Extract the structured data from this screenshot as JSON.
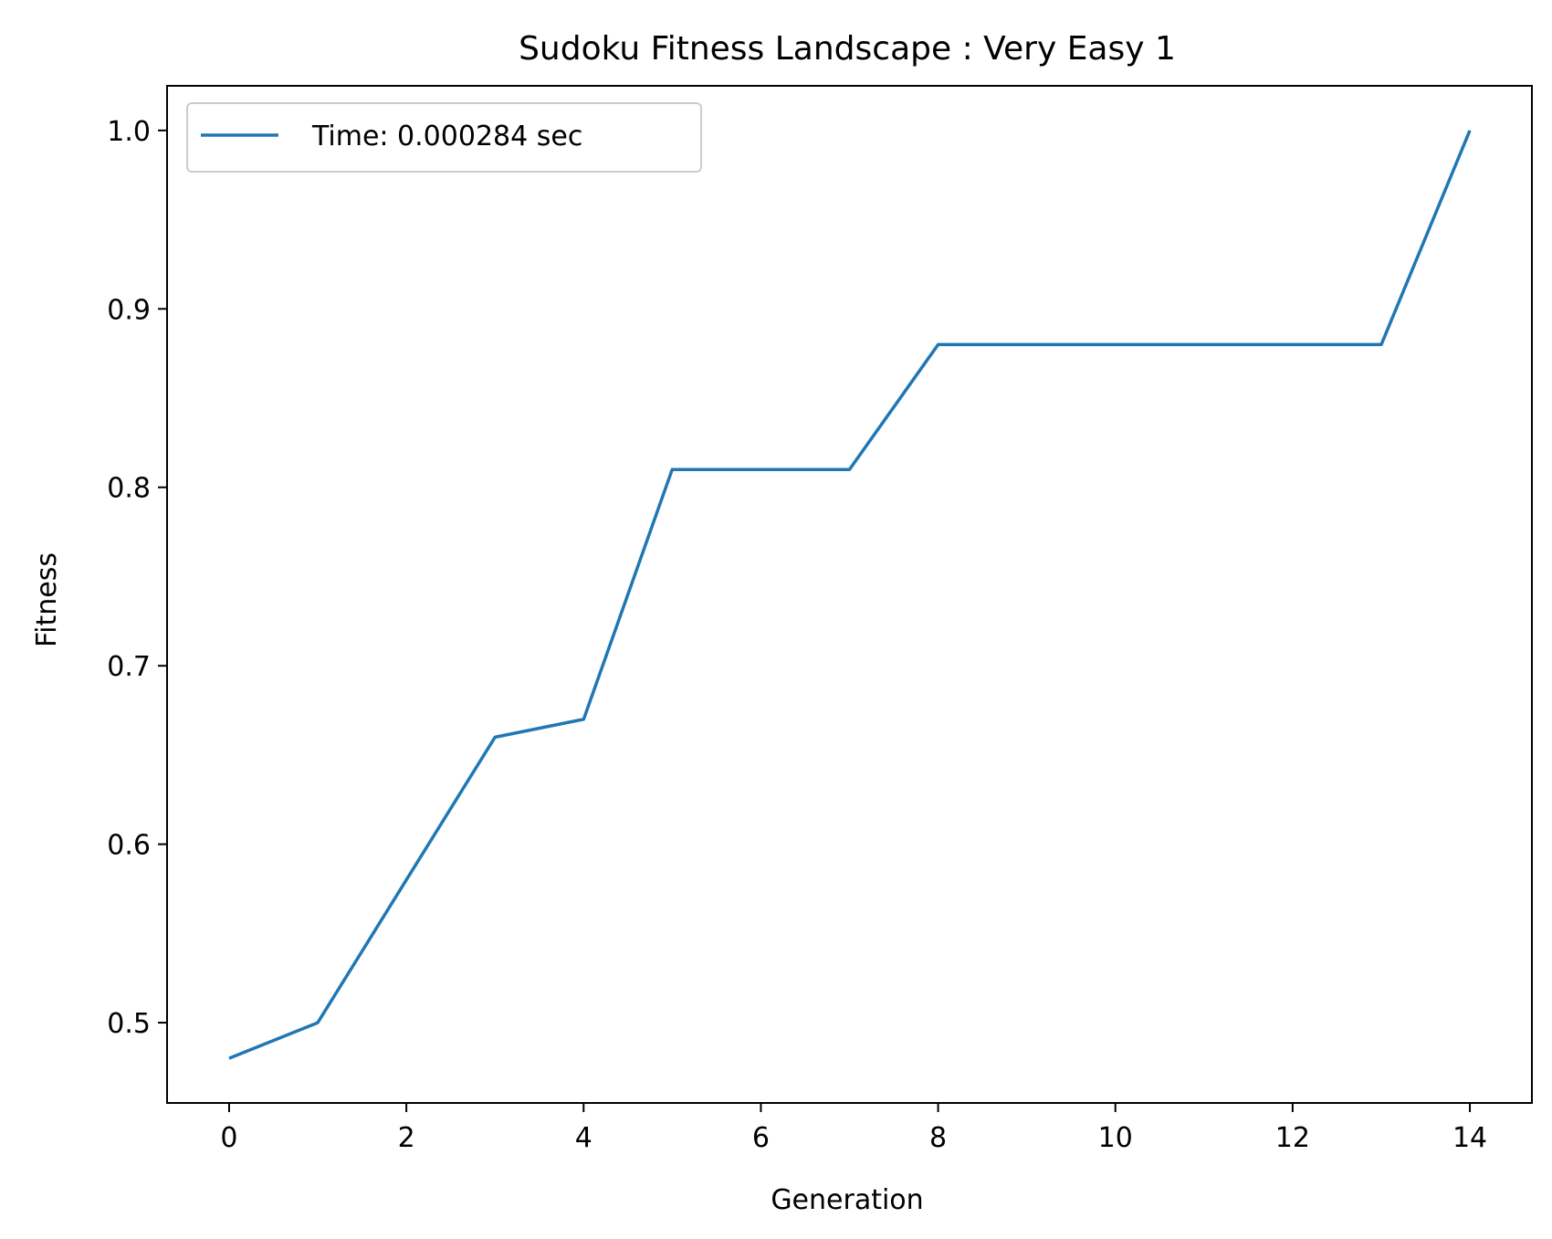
{
  "chart_data": {
    "type": "line",
    "title": "Sudoku Fitness Landscape : Very Easy 1",
    "xlabel": "Generation",
    "ylabel": "Fitness",
    "xlim": [
      -0.7,
      14.7
    ],
    "ylim": [
      0.455,
      1.025
    ],
    "x_ticks": [
      0,
      2,
      4,
      6,
      8,
      10,
      12,
      14
    ],
    "y_ticks": [
      0.5,
      0.6,
      0.7,
      0.8,
      0.9,
      1.0
    ],
    "x_tick_labels": [
      "0",
      "2",
      "4",
      "6",
      "8",
      "10",
      "12",
      "14"
    ],
    "y_tick_labels": [
      "0.5",
      "0.6",
      "0.7",
      "0.8",
      "0.9",
      "1.0"
    ],
    "grid": false,
    "legend_position": "upper-left",
    "series": [
      {
        "name": "Time: 0.000284 sec",
        "color": "#1f77b4",
        "x": [
          0,
          1,
          2,
          3,
          4,
          5,
          6,
          7,
          8,
          9,
          10,
          11,
          12,
          13,
          14
        ],
        "y": [
          0.48,
          0.5,
          0.58,
          0.66,
          0.67,
          0.81,
          0.81,
          0.81,
          0.88,
          0.88,
          0.88,
          0.88,
          0.88,
          0.88,
          1.0
        ]
      }
    ]
  }
}
